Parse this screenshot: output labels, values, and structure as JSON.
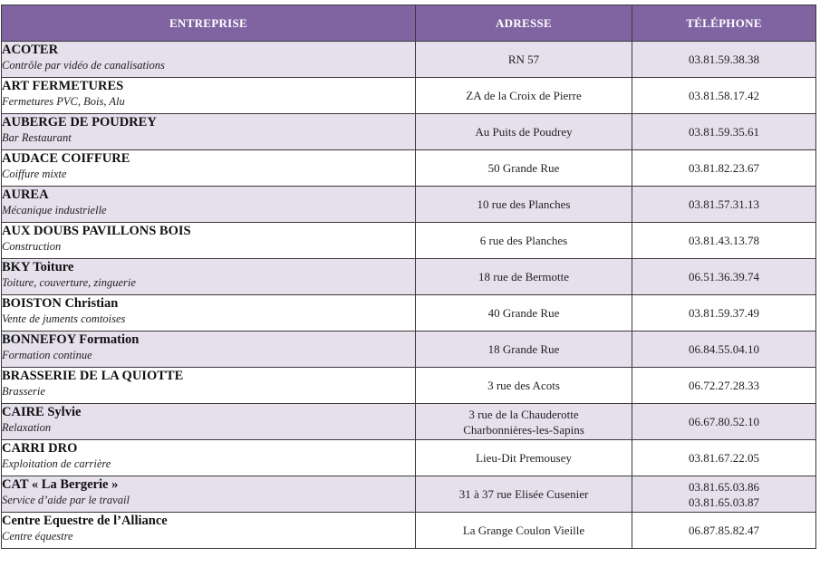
{
  "header": {
    "entreprise": "ENTREPRISE",
    "adresse": "ADRESSE",
    "telephone": "TÉLÉPHONE"
  },
  "rows": [
    {
      "name": "ACOTER",
      "desc": "Contrôle par vidéo de canalisations",
      "address": [
        "RN 57"
      ],
      "phones": [
        "03.81.59.38.38"
      ]
    },
    {
      "name": "ART FERMETURES",
      "desc": "Fermetures PVC, Bois, Alu",
      "address": [
        "ZA de la Croix de Pierre"
      ],
      "phones": [
        "03.81.58.17.42"
      ]
    },
    {
      "name": "AUBERGE DE POUDREY",
      "desc": "Bar Restaurant",
      "address": [
        "Au Puits de Poudrey"
      ],
      "phones": [
        "03.81.59.35.61"
      ]
    },
    {
      "name": "AUDACE COIFFURE",
      "desc": "Coiffure mixte",
      "address": [
        "50 Grande Rue"
      ],
      "phones": [
        "03.81.82.23.67"
      ]
    },
    {
      "name": "AUREA",
      "desc": "Mécanique industrielle",
      "address": [
        "10 rue des Planches"
      ],
      "phones": [
        "03.81.57.31.13"
      ]
    },
    {
      "name": "AUX DOUBS PAVILLONS BOIS",
      "desc": "Construction",
      "address": [
        "6 rue des Planches"
      ],
      "phones": [
        "03.81.43.13.78"
      ]
    },
    {
      "name": "BKY Toiture",
      "desc": "Toiture, couverture, zinguerie",
      "address": [
        "18 rue de Bermotte"
      ],
      "phones": [
        "06.51.36.39.74"
      ]
    },
    {
      "name": "BOISTON Christian",
      "desc": "Vente de juments comtoises",
      "address": [
        "40 Grande Rue"
      ],
      "phones": [
        "03.81.59.37.49"
      ]
    },
    {
      "name": "BONNEFOY Formation",
      "desc": "Formation continue",
      "address": [
        "18 Grande Rue"
      ],
      "phones": [
        "06.84.55.04.10"
      ]
    },
    {
      "name": "BRASSERIE DE LA QUIOTTE",
      "desc": "Brasserie",
      "address": [
        "3 rue des Acots"
      ],
      "phones": [
        "06.72.27.28.33"
      ]
    },
    {
      "name": "CAIRE Sylvie",
      "desc": "Relaxation",
      "address": [
        "3 rue de la Chauderotte",
        "Charbonnières-les-Sapins"
      ],
      "phones": [
        "06.67.80.52.10"
      ]
    },
    {
      "name": "CARRI DRO",
      "desc": "Exploitation de carrière",
      "address": [
        "Lieu-Dit Premousey"
      ],
      "phones": [
        "03.81.67.22.05"
      ]
    },
    {
      "name": "CAT « La Bergerie »",
      "desc": "Service d’aide par le travail",
      "address": [
        "31 à 37 rue Elisée Cusenier"
      ],
      "phones": [
        "03.81.65.03.86",
        "03.81.65.03.87"
      ]
    },
    {
      "name": "Centre Equestre de l’Alliance",
      "desc": "Centre équestre",
      "address": [
        "La Grange Coulon Vieille"
      ],
      "phones": [
        "06.87.85.82.47"
      ]
    }
  ]
}
